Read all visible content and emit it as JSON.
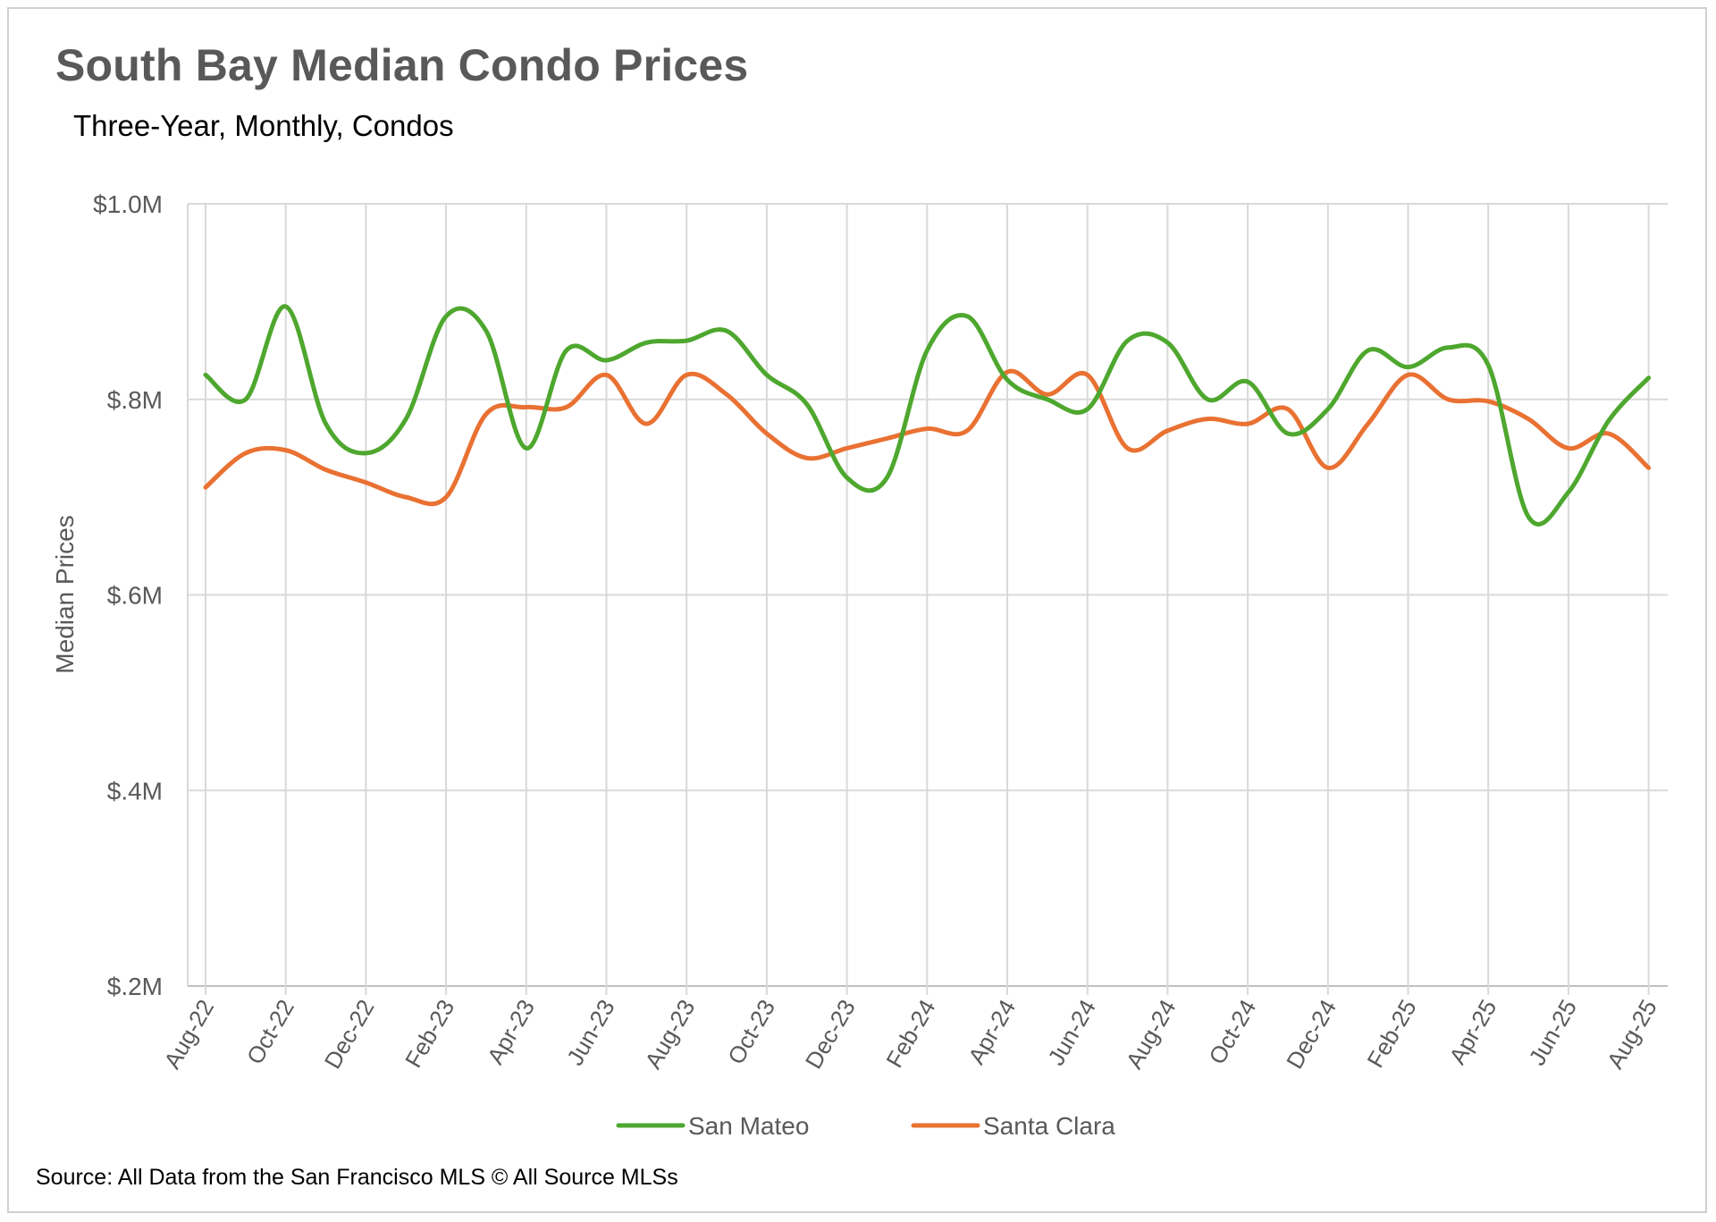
{
  "chart_data": {
    "type": "line",
    "title": "South Bay Median Condo Prices",
    "subtitle": "Three-Year, Monthly, Condos",
    "ylabel": "Median Prices",
    "xlabel": "",
    "ylim": [
      200000,
      1000000
    ],
    "y_ticks": [
      {
        "value": 1000000,
        "label": "$1.0M"
      },
      {
        "value": 800000,
        "label": "$.8M"
      },
      {
        "value": 600000,
        "label": "$.6M"
      },
      {
        "value": 400000,
        "label": "$.4M"
      },
      {
        "value": 200000,
        "label": "$.2M"
      }
    ],
    "x": [
      "Aug-22",
      "Sep-22",
      "Oct-22",
      "Nov-22",
      "Dec-22",
      "Jan-23",
      "Feb-23",
      "Mar-23",
      "Apr-23",
      "May-23",
      "Jun-23",
      "Jul-23",
      "Aug-23",
      "Sep-23",
      "Oct-23",
      "Nov-23",
      "Dec-23",
      "Jan-24",
      "Feb-24",
      "Mar-24",
      "Apr-24",
      "May-24",
      "Jun-24",
      "Jul-24",
      "Aug-24",
      "Sep-24",
      "Oct-24",
      "Nov-24",
      "Dec-24",
      "Jan-25",
      "Feb-25",
      "Mar-25",
      "Apr-25",
      "May-25",
      "Jun-25",
      "Jul-25",
      "Aug-25"
    ],
    "x_tick_labels": [
      "Aug-22",
      "Oct-22",
      "Dec-22",
      "Feb-23",
      "Apr-23",
      "Jun-23",
      "Aug-23",
      "Oct-23",
      "Dec-23",
      "Feb-24",
      "Apr-24",
      "Jun-24",
      "Aug-24",
      "Oct-24",
      "Dec-24",
      "Feb-25",
      "Apr-25",
      "Jun-25",
      "Aug-25"
    ],
    "grid": true,
    "legend_position": "bottom",
    "series": [
      {
        "name": "San Mateo",
        "color": "#4ea72e",
        "values": [
          825000,
          800000,
          895000,
          775000,
          745000,
          780000,
          885000,
          870000,
          750000,
          850000,
          840000,
          858000,
          860000,
          870000,
          825000,
          795000,
          720000,
          720000,
          850000,
          885000,
          820000,
          800000,
          790000,
          860000,
          858000,
          800000,
          818000,
          765000,
          790000,
          850000,
          833000,
          853000,
          835000,
          680000,
          705000,
          778000,
          822000
        ]
      },
      {
        "name": "Santa Clara",
        "color": "#e97132",
        "values": [
          710000,
          745000,
          748000,
          728000,
          715000,
          700000,
          700000,
          785000,
          792000,
          792000,
          825000,
          775000,
          825000,
          805000,
          765000,
          740000,
          750000,
          760000,
          770000,
          768000,
          828000,
          805000,
          825000,
          750000,
          768000,
          780000,
          775000,
          790000,
          730000,
          775000,
          825000,
          800000,
          798000,
          780000,
          750000,
          765000,
          730000
        ]
      }
    ]
  },
  "source": "Source: All Data from the San Francisco MLS © All Source MLSs"
}
